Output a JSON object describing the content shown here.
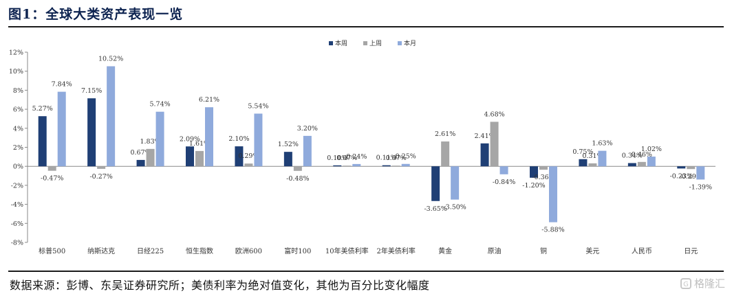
{
  "header": {
    "title": "图1：全球大类资产表现一览"
  },
  "footer": {
    "source": "数据来源：彭博、东吴证券研究所；美债利率为绝对值变化，其他为百分比变化幅度"
  },
  "watermark": {
    "text": "格隆汇",
    "icon": "glh-logo-icon"
  },
  "colors": {
    "s0": "#1f3f75",
    "s1": "#a6a6a6",
    "s2": "#8faadc",
    "axis": "#888888",
    "text": "#333333"
  },
  "chart_data": {
    "type": "bar",
    "title": "",
    "xlabel": "",
    "ylabel": "",
    "ylim": [
      -8,
      12
    ],
    "yticks": [
      -8,
      -6,
      -4,
      -2,
      0,
      2,
      4,
      6,
      8,
      10,
      12
    ],
    "y_tick_labels": [
      "-8%",
      "-6%",
      "-4%",
      "-2%",
      "0%",
      "2%",
      "4%",
      "6%",
      "8%",
      "10%",
      "12%"
    ],
    "grid": false,
    "legend_position": "top-center",
    "categories": [
      "标普500",
      "纳斯达克",
      "日经225",
      "恒生指数",
      "欧洲600",
      "富时100",
      "10年美债利率",
      "2年美债利率",
      "黄金",
      "原油",
      "铜",
      "美元",
      "人民币",
      "日元"
    ],
    "series": [
      {
        "name": "本周",
        "values": [
          5.27,
          7.15,
          0.67,
          2.09,
          2.1,
          1.52,
          0.1,
          0.11,
          -3.65,
          2.41,
          -1.2,
          0.75,
          0.34,
          -0.23
        ],
        "labels": [
          "5.27%",
          "7.15%",
          "0.67%",
          "2.09%",
          "2.10%",
          "1.52%",
          "0.10%",
          "0.11%",
          "-3.65%",
          "2.41%",
          "-1.20%",
          "0.75%",
          "0.34%",
          "-0.23%"
        ]
      },
      {
        "name": "上周",
        "values": [
          -0.47,
          -0.27,
          1.83,
          1.61,
          0.29,
          -0.48,
          0.07,
          0.07,
          2.61,
          4.68,
          -0.36,
          0.31,
          0.46,
          -0.29
        ],
        "labels": [
          "-0.47%",
          "-0.27%",
          "1.83%",
          "1.61%",
          "0.29%",
          "-0.48%",
          "0.07%",
          "0.07%",
          "2.61%",
          "4.68%",
          "-0.36%",
          "0.31%",
          "0.46%",
          "-0.29%"
        ]
      },
      {
        "name": "本月",
        "values": [
          7.84,
          10.52,
          5.74,
          6.21,
          5.54,
          3.2,
          0.24,
          0.25,
          -3.5,
          -0.84,
          -5.88,
          1.63,
          1.02,
          -1.39
        ],
        "labels": [
          "7.84%",
          "10.52%",
          "5.74%",
          "6.21%",
          "5.54%",
          "3.20%",
          "0.24%",
          "0.25%",
          "-3.50%",
          "-0.84%",
          "-5.88%",
          "1.63%",
          "1.02%",
          "-1.39%"
        ]
      }
    ]
  }
}
